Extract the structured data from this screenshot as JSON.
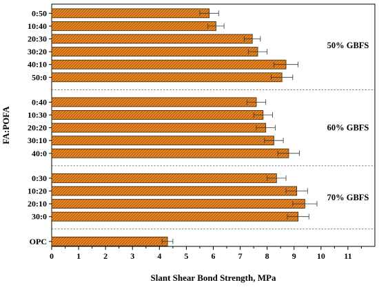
{
  "chart_data": {
    "type": "bar",
    "orientation": "horizontal",
    "xlabel": "Slant Shear Bond Strength, MPa",
    "ylabel": "FA:POFA",
    "xlim": [
      0,
      12
    ],
    "xticks": [
      "0",
      "1",
      "2",
      "3",
      "4",
      "5",
      "6",
      "7",
      "8",
      "9",
      "10",
      "11"
    ],
    "bar_color": "#ee8a26",
    "bar_pattern": "diagonal-hatch",
    "grid": false,
    "groups": [
      {
        "label": "50% GBFS",
        "bars": [
          {
            "category": "0:50",
            "value": 5.85,
            "error": 0.35
          },
          {
            "category": "10:40",
            "value": 6.1,
            "error": 0.3
          },
          {
            "category": "20:30",
            "value": 7.45,
            "error": 0.3
          },
          {
            "category": "30:20",
            "value": 7.65,
            "error": 0.35
          },
          {
            "category": "40:10",
            "value": 8.7,
            "error": 0.45
          },
          {
            "category": "50:0",
            "value": 8.55,
            "error": 0.4
          }
        ]
      },
      {
        "label": "60% GBFS",
        "bars": [
          {
            "category": "0:40",
            "value": 7.6,
            "error": 0.35
          },
          {
            "category": "10:30",
            "value": 7.85,
            "error": 0.35
          },
          {
            "category": "20:20",
            "value": 7.95,
            "error": 0.35
          },
          {
            "category": "30:10",
            "value": 8.25,
            "error": 0.35
          },
          {
            "category": "40:0",
            "value": 8.8,
            "error": 0.4
          }
        ]
      },
      {
        "label": "70% GBFS",
        "bars": [
          {
            "category": "0:30",
            "value": 8.35,
            "error": 0.35
          },
          {
            "category": "10:20",
            "value": 9.1,
            "error": 0.4
          },
          {
            "category": "20:10",
            "value": 9.4,
            "error": 0.45
          },
          {
            "category": "30:0",
            "value": 9.15,
            "error": 0.4
          }
        ]
      },
      {
        "label": "",
        "bars": [
          {
            "category": "OPC",
            "value": 4.3,
            "error": 0.2
          }
        ]
      }
    ]
  }
}
